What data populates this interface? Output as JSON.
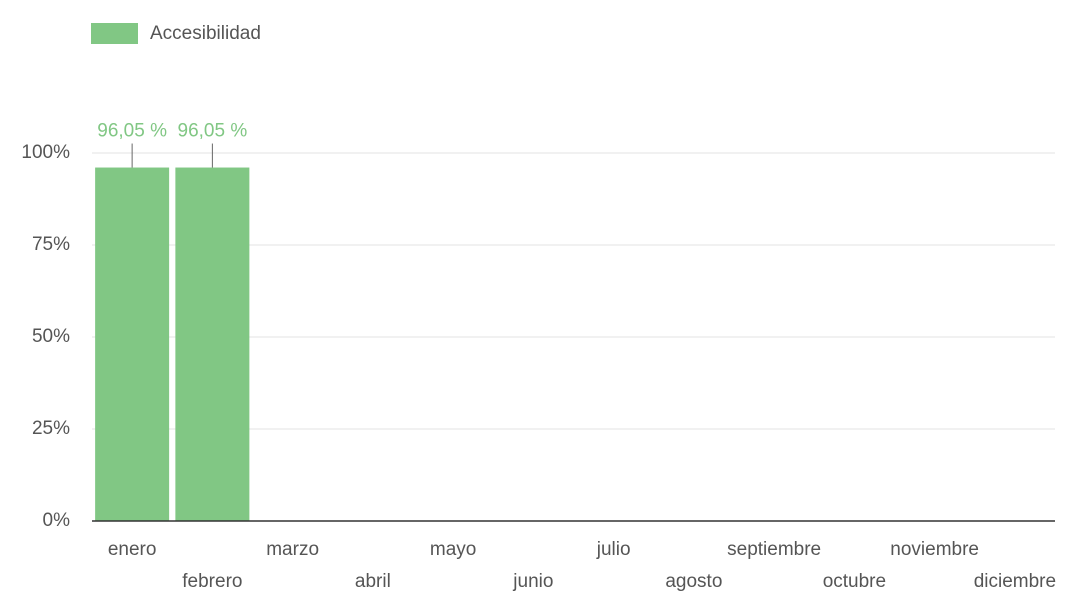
{
  "chart_data": {
    "type": "bar",
    "legend": {
      "name": "Accesibilidad",
      "color": "#81c784"
    },
    "categories": [
      "enero",
      "febrero",
      "marzo",
      "abril",
      "mayo",
      "junio",
      "julio",
      "agosto",
      "septiembre",
      "octubre",
      "noviembre",
      "diciembre"
    ],
    "values": [
      96.05,
      96.05,
      null,
      null,
      null,
      null,
      null,
      null,
      null,
      null,
      null,
      null
    ],
    "value_labels": [
      "96,05 %",
      "96,05 %",
      null,
      null,
      null,
      null,
      null,
      null,
      null,
      null,
      null,
      null
    ],
    "color": "#81c784",
    "ylim": [
      0,
      100
    ],
    "yticks": [
      {
        "value": 0,
        "label": "0%"
      },
      {
        "value": 25,
        "label": "25%"
      },
      {
        "value": 50,
        "label": "50%"
      },
      {
        "value": 75,
        "label": "75%"
      },
      {
        "value": 100,
        "label": "100%"
      }
    ],
    "grid": true
  }
}
